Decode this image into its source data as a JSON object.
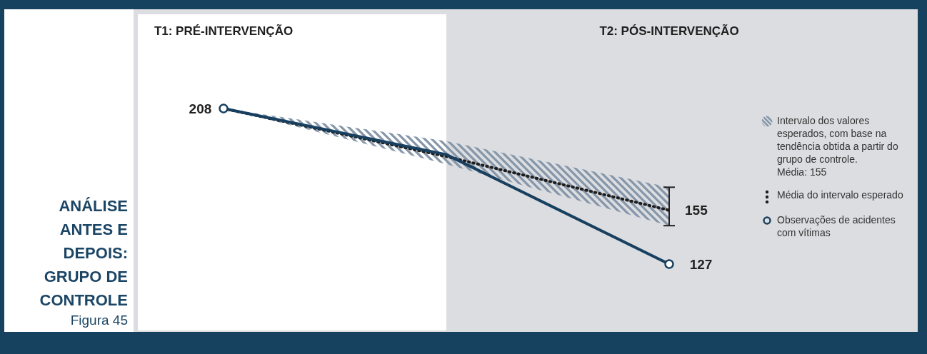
{
  "chart_data": {
    "type": "line",
    "title": "ANÁLISE ANTES E DEPOIS: GRUPO DE CONTROLE",
    "subtitle": "Figura 45",
    "annotations": [
      "Intervalo dos valores esperados, com base na tendência obtida a partir do grupo de controle.\nMédia: 155"
    ],
    "categories": [
      "T1: PRÉ-INTERVENÇÃO",
      null,
      "T2: PÓS-INTERVENÇÃO"
    ],
    "tick_labels": "x",
    "legend": "right",
    "series": [
      {
        "name": "Média do intervalo esperado",
        "color": "#1e1e1e",
        "line_style": "dotted",
        "marker": "none",
        "values": [
          208,
          183,
          155
        ],
        "lower": [
          208,
          179,
          147
        ],
        "upper": [
          208,
          191,
          167
        ],
        "value_labels": [
          null,
          null,
          "155"
        ]
      },
      {
        "name": "Observações de acidentes com vítimas",
        "color": "#173f5f",
        "line_style": "solid",
        "marker": "circle",
        "values": [
          208,
          184,
          127
        ],
        "value_labels": [
          "208",
          null,
          "127"
        ]
      }
    ]
  }
}
